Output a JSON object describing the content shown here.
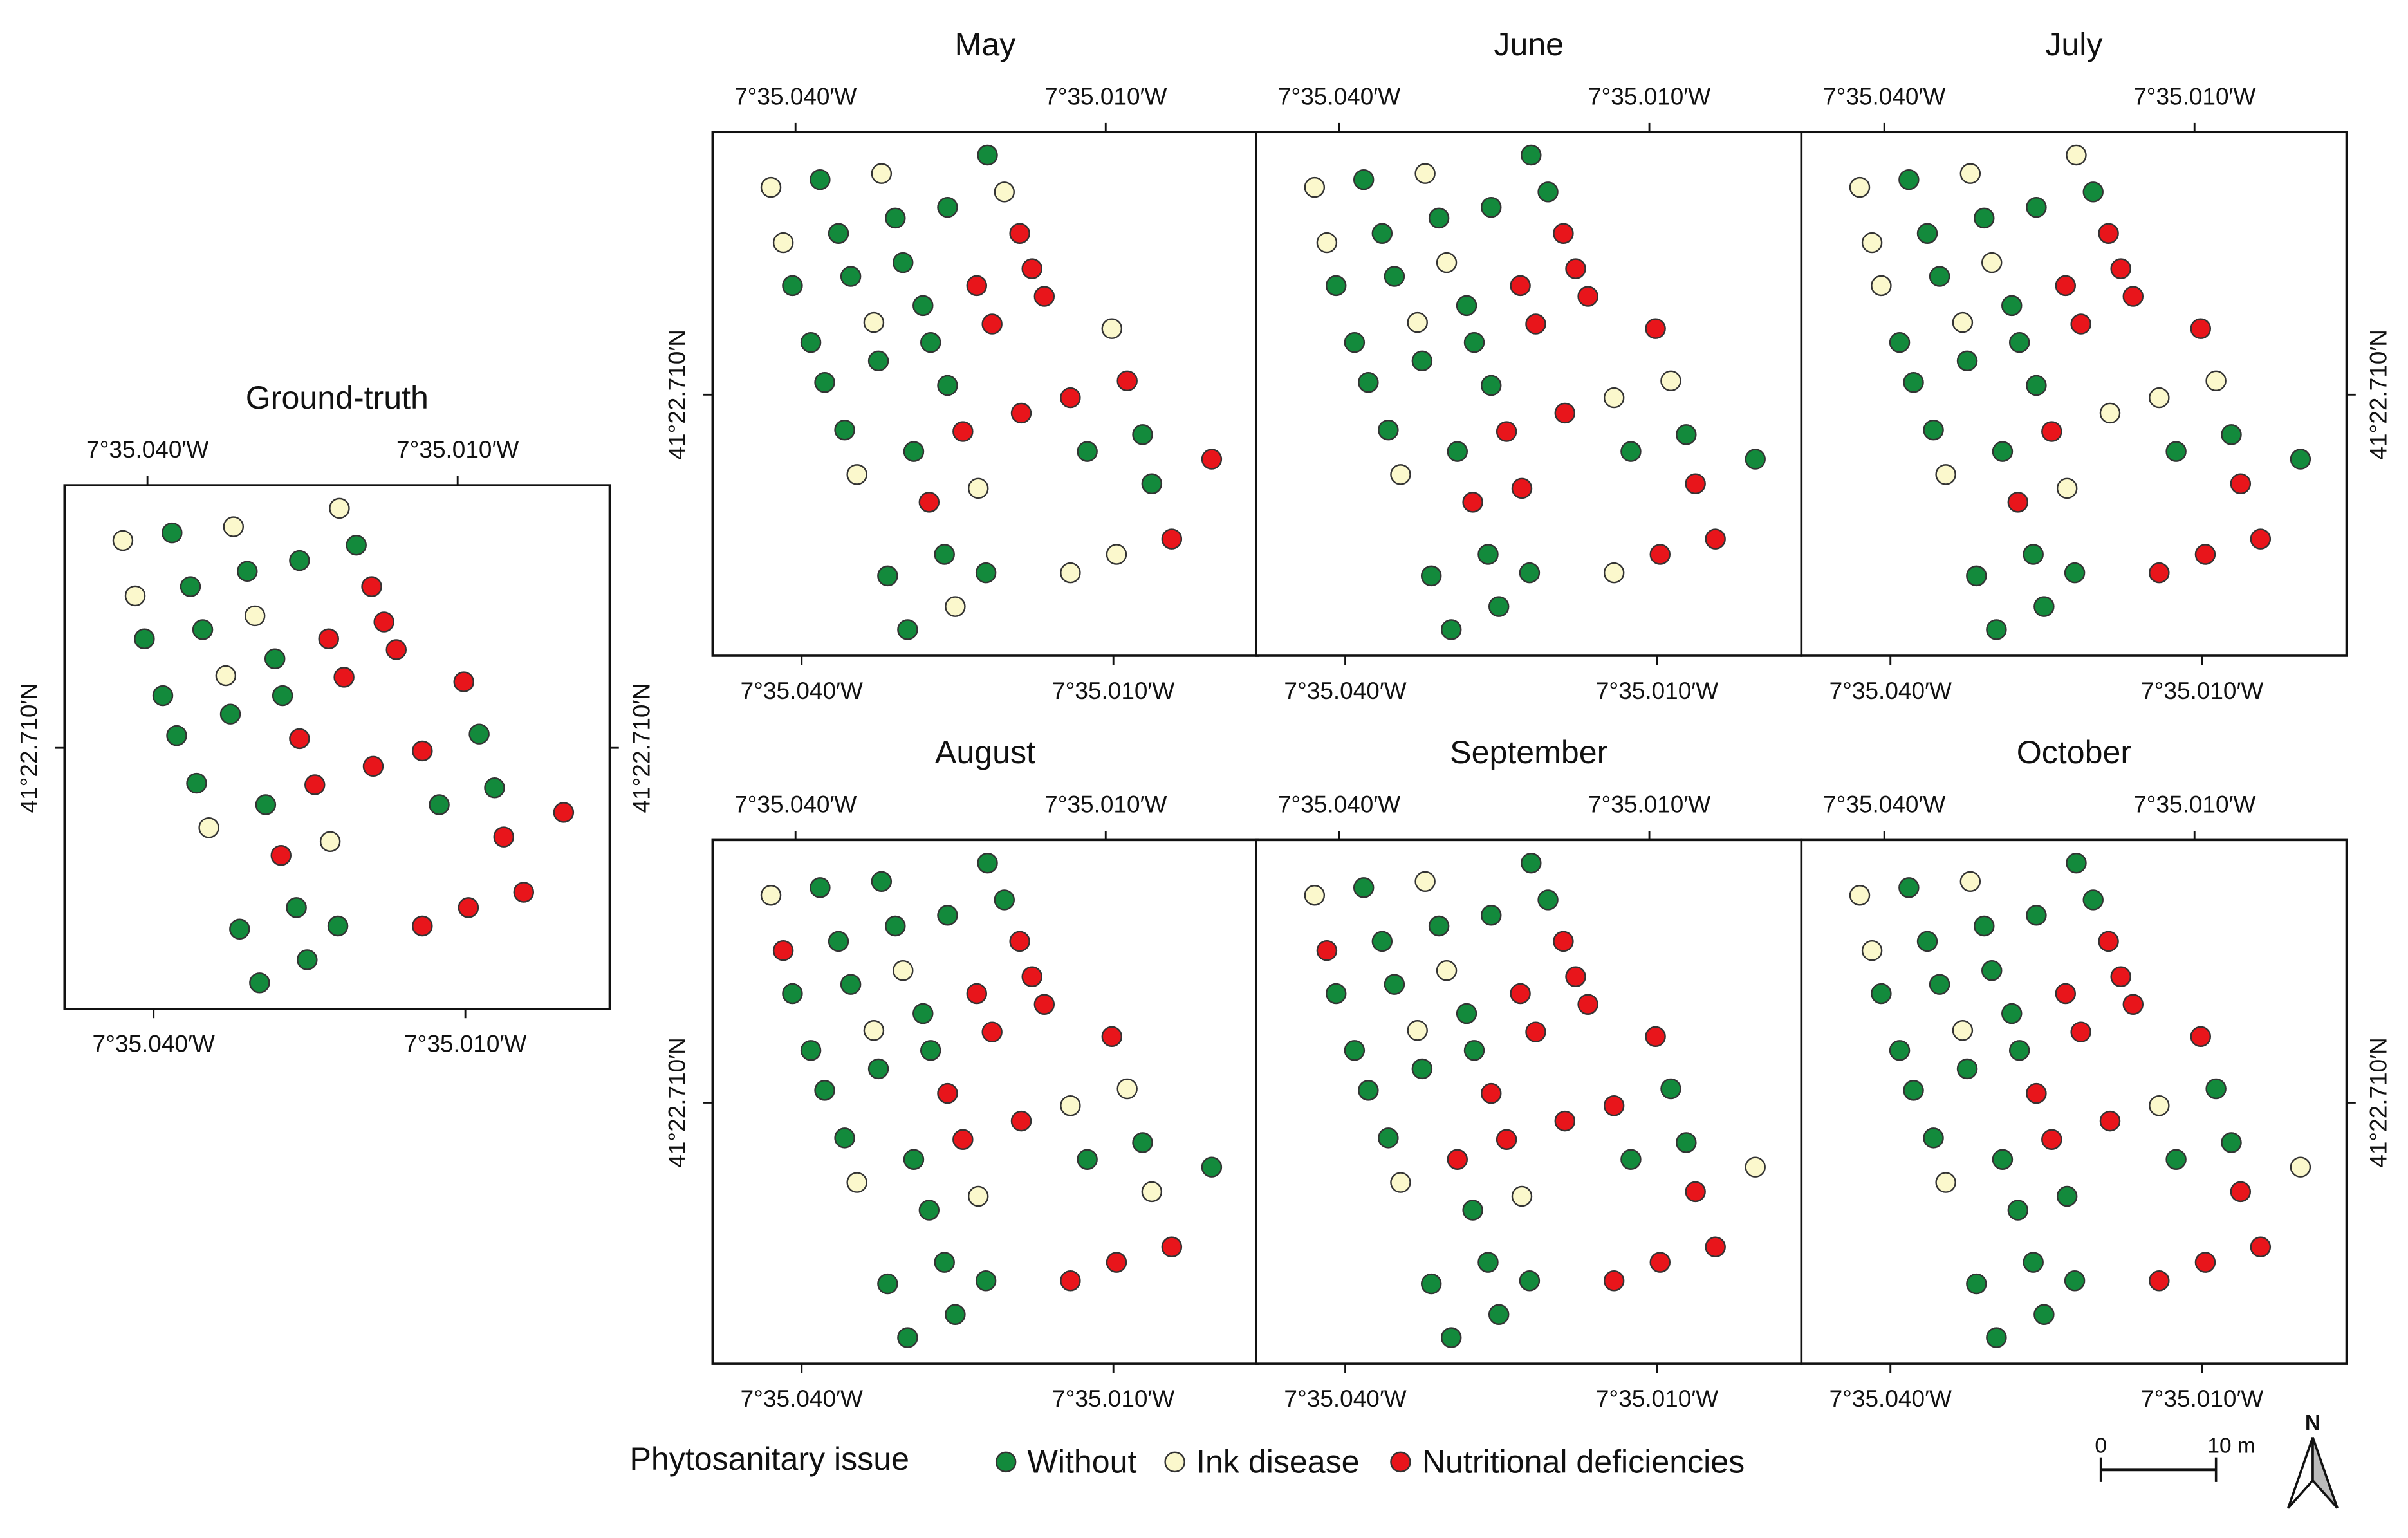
{
  "legend": {
    "title": "Phytosanitary issue",
    "classes": [
      {
        "label": "Without",
        "color": "#138a3c"
      },
      {
        "label": "Ink disease",
        "color": "#fbf8cc"
      },
      {
        "label": "Nutritional deficiencies",
        "color": "#e8151b"
      }
    ]
  },
  "axis_labels": {
    "lon_left": "7°35.040′W",
    "lon_right": "7°35.010′W",
    "lat": "41°22.710′N"
  },
  "panels": [
    {
      "title": "Ground-truth",
      "status": [
        1,
        0,
        1,
        1,
        0,
        0,
        0,
        1,
        0,
        2,
        1,
        0,
        2,
        0,
        2,
        2,
        0,
        1,
        2,
        0,
        0,
        2,
        0,
        0,
        2,
        0,
        2,
        2,
        0,
        2,
        0,
        0,
        0,
        2,
        1,
        1,
        2,
        2,
        2,
        0,
        0,
        0,
        2,
        2,
        0,
        0
      ]
    },
    {
      "title": "May",
      "status": [
        1,
        0,
        1,
        0,
        1,
        0,
        0,
        1,
        0,
        2,
        0,
        0,
        2,
        0,
        2,
        2,
        0,
        1,
        2,
        0,
        0,
        1,
        0,
        0,
        0,
        2,
        2,
        2,
        0,
        2,
        0,
        0,
        0,
        2,
        1,
        1,
        0,
        2,
        2,
        0,
        0,
        0,
        1,
        1,
        1,
        0
      ]
    },
    {
      "title": "June",
      "status": [
        1,
        0,
        1,
        0,
        0,
        0,
        0,
        1,
        0,
        2,
        1,
        0,
        2,
        0,
        2,
        2,
        0,
        1,
        2,
        0,
        0,
        2,
        0,
        0,
        0,
        1,
        1,
        2,
        0,
        2,
        0,
        0,
        0,
        0,
        1,
        2,
        2,
        2,
        2,
        0,
        0,
        0,
        1,
        2,
        0,
        0
      ]
    },
    {
      "title": "July",
      "status": [
        1,
        0,
        1,
        1,
        0,
        0,
        0,
        1,
        0,
        2,
        1,
        0,
        2,
        1,
        2,
        2,
        0,
        1,
        2,
        0,
        0,
        2,
        0,
        0,
        0,
        1,
        1,
        1,
        0,
        2,
        0,
        0,
        0,
        0,
        1,
        1,
        2,
        2,
        2,
        0,
        0,
        0,
        2,
        2,
        0,
        0
      ]
    },
    {
      "title": "August",
      "status": [
        1,
        0,
        0,
        0,
        0,
        0,
        0,
        2,
        0,
        2,
        1,
        0,
        2,
        0,
        2,
        2,
        0,
        1,
        2,
        0,
        0,
        2,
        0,
        0,
        2,
        1,
        1,
        2,
        0,
        2,
        0,
        0,
        0,
        0,
        1,
        1,
        1,
        0,
        2,
        0,
        0,
        0,
        2,
        2,
        0,
        0
      ]
    },
    {
      "title": "September",
      "status": [
        1,
        0,
        1,
        0,
        0,
        0,
        0,
        2,
        0,
        2,
        1,
        0,
        2,
        0,
        2,
        2,
        0,
        1,
        2,
        0,
        0,
        2,
        0,
        0,
        2,
        0,
        2,
        2,
        0,
        2,
        2,
        0,
        0,
        1,
        1,
        1,
        2,
        0,
        2,
        0,
        0,
        0,
        2,
        2,
        0,
        0
      ]
    },
    {
      "title": "October",
      "status": [
        1,
        0,
        1,
        0,
        0,
        0,
        0,
        1,
        0,
        2,
        0,
        0,
        2,
        0,
        2,
        2,
        0,
        1,
        2,
        0,
        0,
        2,
        0,
        0,
        2,
        0,
        1,
        2,
        0,
        2,
        0,
        0,
        0,
        1,
        1,
        0,
        2,
        0,
        2,
        0,
        0,
        0,
        2,
        2,
        0,
        0
      ]
    }
  ],
  "scale_bar": {
    "start": "0",
    "end": "10 m"
  },
  "north": "N"
}
